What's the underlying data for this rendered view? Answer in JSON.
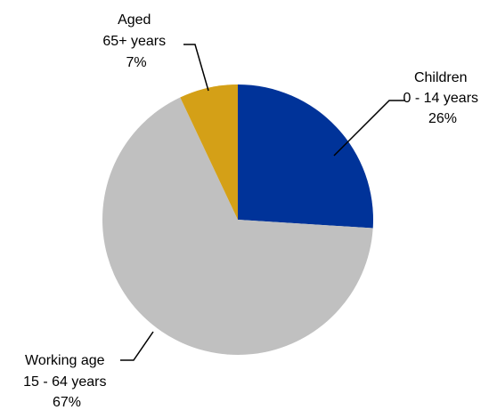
{
  "chart_data": {
    "type": "pie",
    "slices": [
      {
        "category": "Children",
        "range": "0 - 14 years",
        "value": 26,
        "value_label": "26%",
        "color": "#003399"
      },
      {
        "category": "Working age",
        "range": "15 - 64 years",
        "value": 67,
        "value_label": "67%",
        "color": "#C0C0C0"
      },
      {
        "category": "Aged",
        "range": "65+ years",
        "value": 7,
        "value_label": "7%",
        "color": "#D4A017"
      }
    ],
    "start_angle_deg": 0,
    "direction": "clockwise",
    "legend": "none"
  }
}
